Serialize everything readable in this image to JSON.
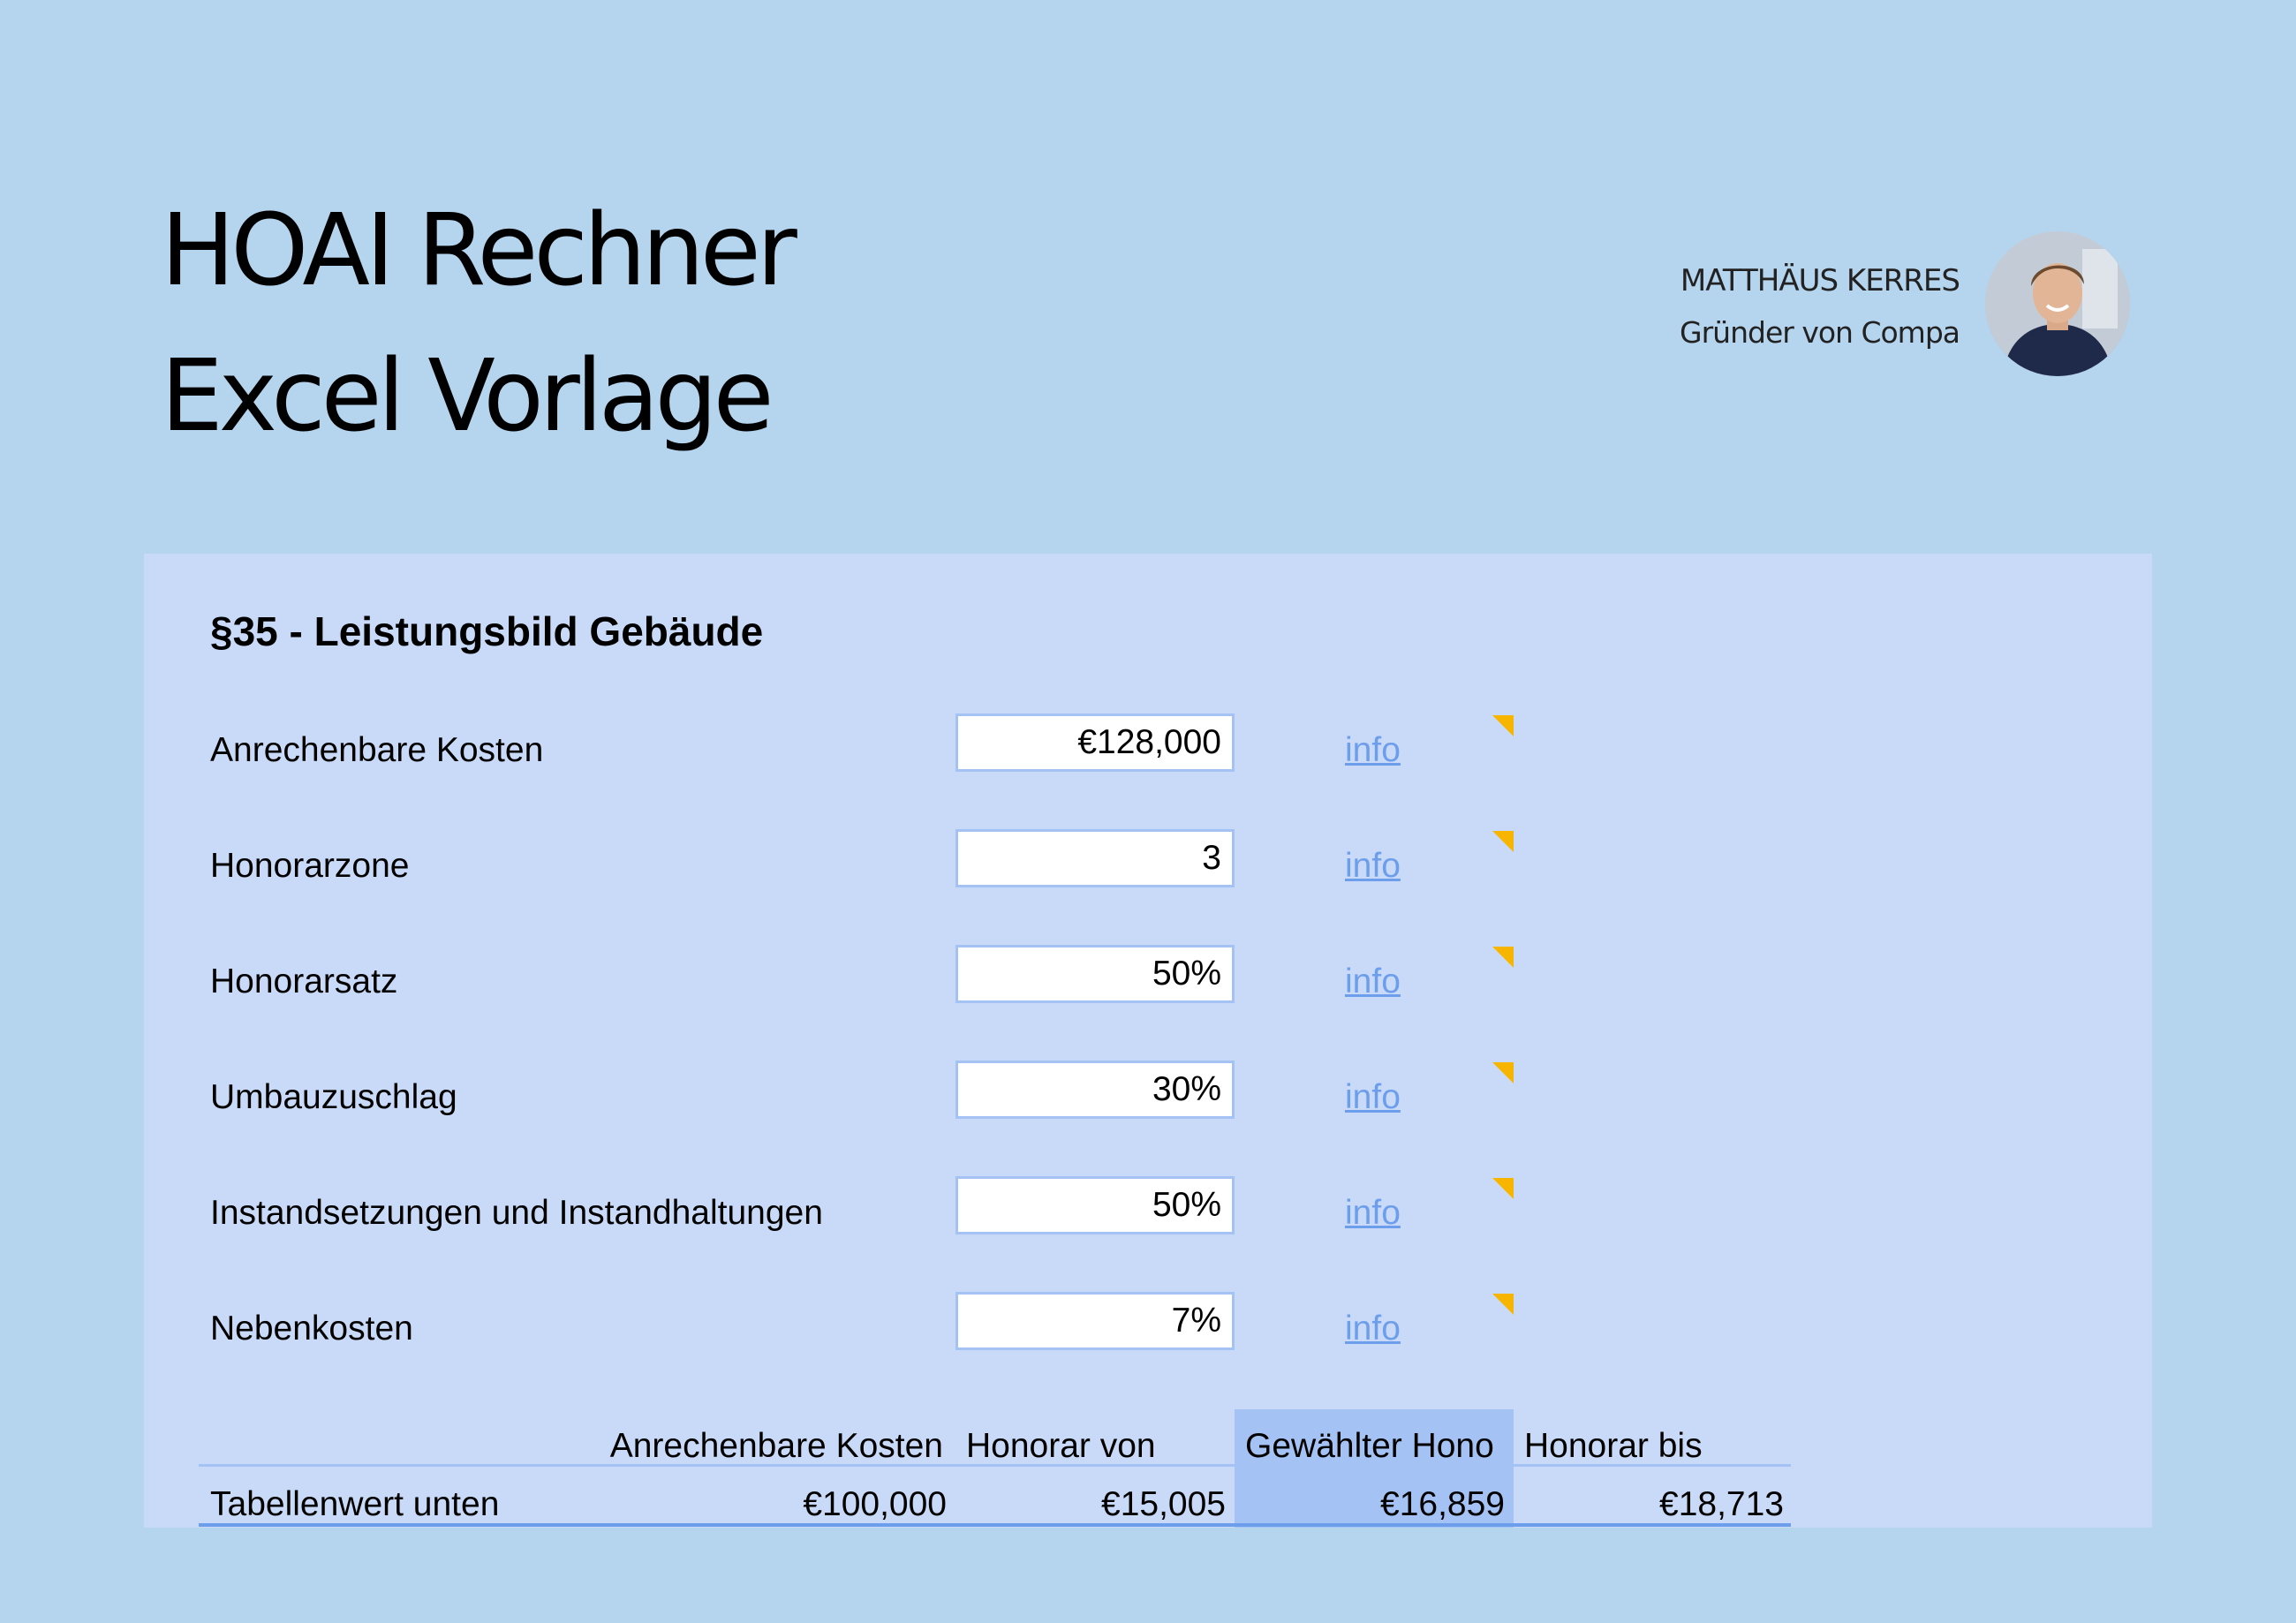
{
  "header": {
    "title_line1": "HOAI Rechner",
    "title_line2": "Excel Vorlage",
    "author_name": "MATTHÄUS KERRES",
    "author_role": "Gründer von Compa"
  },
  "sheet": {
    "section_title": "§35 - Leistungsbild Gebäude",
    "rows": [
      {
        "label": "Anrechenbare Kosten",
        "value": "€128,000",
        "link": "info"
      },
      {
        "label": "Honorarzone",
        "value": "3",
        "link": "info"
      },
      {
        "label": "Honorarsatz",
        "value": "50%",
        "link": "info"
      },
      {
        "label": "Umbauzuschlag",
        "value": "30%",
        "link": "info"
      },
      {
        "label": "Instandsetzungen und Instandhaltungen",
        "value": "50%",
        "link": "info"
      },
      {
        "label": "Nebenkosten",
        "value": "7%",
        "link": "info"
      }
    ],
    "table": {
      "headers": [
        "Anrechenbare Kosten",
        "Honorar von",
        "Gewählter Hono",
        "Honorar bis"
      ],
      "row": {
        "label": "Tabellenwert unten",
        "cells": [
          "€100,000",
          "€15,005",
          "€16,859",
          "€18,713"
        ]
      }
    }
  },
  "colors": {
    "page_background": "#b5d4ee",
    "panel_background": "#c9daf8",
    "selected_column": "#a4c2f4",
    "link": "#6d9eeb",
    "note_marker": "#f7b500"
  },
  "icons": {
    "note_marker": "comment-indicator-icon",
    "avatar": "author-avatar"
  }
}
